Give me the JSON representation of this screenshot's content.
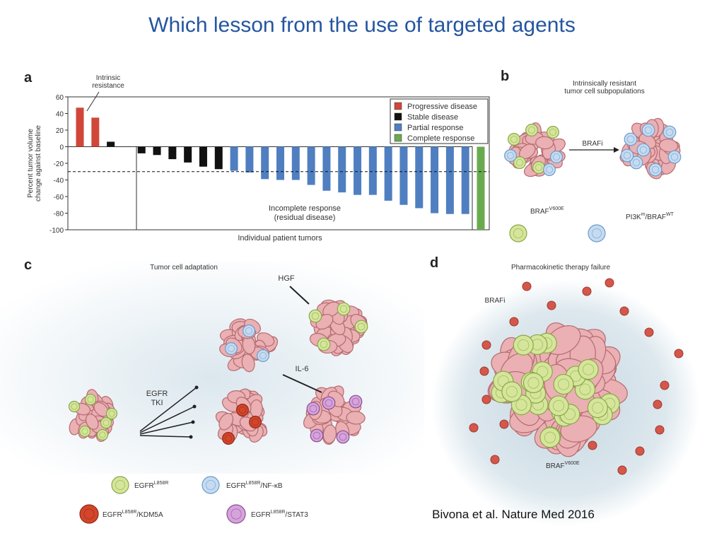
{
  "slide": {
    "title": "Which lesson from the use of targeted agents",
    "citation": "Bivona et al. Nature Med 2016"
  },
  "chart_data": {
    "type": "bar",
    "panel_label": "a",
    "ylabel": [
      "Percent tumor volume",
      "change against baseline"
    ],
    "xlabel": "Individual patient tumors",
    "annotations": [
      [
        "Intrinsic",
        "resistance"
      ],
      [
        "Incomplete response",
        "(residual disease)"
      ]
    ],
    "categories": [
      null,
      null,
      null,
      null,
      null,
      null,
      null,
      null,
      null,
      null,
      null,
      null,
      null,
      null,
      null,
      null,
      null,
      null,
      null,
      null,
      null,
      null,
      null,
      null,
      null,
      null,
      null
    ],
    "series": [
      {
        "name": "Progressive disease",
        "color": "#d0473a",
        "values": [
          47,
          35,
          null,
          null,
          null,
          null,
          null,
          null,
          null,
          null,
          null,
          null,
          null,
          null,
          null,
          null,
          null,
          null,
          null,
          null,
          null,
          null,
          null,
          null,
          null,
          null,
          null
        ]
      },
      {
        "name": "Stable disease",
        "color": "#111111",
        "values": [
          null,
          null,
          6,
          null,
          -8,
          -10,
          -15,
          -19,
          -24,
          -27,
          null,
          null,
          null,
          null,
          null,
          null,
          null,
          null,
          null,
          null,
          null,
          null,
          null,
          null,
          null,
          null,
          null
        ]
      },
      {
        "name": "Partial response",
        "color": "#4f7fc0",
        "values": [
          null,
          null,
          null,
          null,
          null,
          null,
          null,
          null,
          null,
          null,
          -29,
          -31,
          -39,
          -40,
          -40,
          -46,
          -53,
          -55,
          -58,
          -58,
          -65,
          -70,
          -74,
          -80,
          -81,
          -81,
          null
        ]
      },
      {
        "name": "Complete response",
        "color": "#6aaa4f",
        "values": [
          null,
          null,
          null,
          null,
          null,
          null,
          null,
          null,
          null,
          null,
          null,
          null,
          null,
          null,
          null,
          null,
          null,
          null,
          null,
          null,
          null,
          null,
          null,
          null,
          null,
          null,
          -100
        ]
      }
    ],
    "ylim": [
      -100,
      60
    ],
    "yticks": [
      -100,
      -80,
      -60,
      -40,
      -20,
      0,
      20,
      40,
      60
    ],
    "reference_line": -30,
    "legend": "upper right",
    "grid": false
  },
  "panel_b": {
    "label": "b",
    "caption": [
      "Intrinsically resistant",
      "tumor cell subpopulations"
    ],
    "drug": "BRAFi",
    "cell_types": [
      [
        {
          "text": "BRAF"
        },
        {
          "sup": "V600E"
        }
      ],
      [
        {
          "text": "PI3K"
        },
        {
          "sup": "m"
        },
        {
          "text": "/BRAF"
        },
        {
          "sup": "WT"
        }
      ]
    ]
  },
  "panel_c": {
    "label": "c",
    "caption": "Tumor cell adaptation",
    "factors": [
      "HGF",
      "IL-6"
    ],
    "drug": [
      "EGFR",
      "TKI"
    ],
    "cell_types": [
      [
        {
          "text": "EGFR"
        },
        {
          "sup": "L858R"
        }
      ],
      [
        {
          "text": "EGFR"
        },
        {
          "sup": "L858R"
        },
        {
          "text": "/NF-κB"
        }
      ],
      [
        {
          "text": "EGFR"
        },
        {
          "sup": "L858R"
        },
        {
          "text": "/KDM5A"
        }
      ],
      [
        {
          "text": "EGFR"
        },
        {
          "sup": "L858R"
        },
        {
          "text": "/STAT3"
        }
      ]
    ]
  },
  "panel_d": {
    "label": "d",
    "caption": "Pharmacokinetic therapy failure",
    "drug": "BRAFi",
    "cell_type": [
      {
        "text": "BRAF"
      },
      {
        "sup": "V600E"
      }
    ]
  }
}
